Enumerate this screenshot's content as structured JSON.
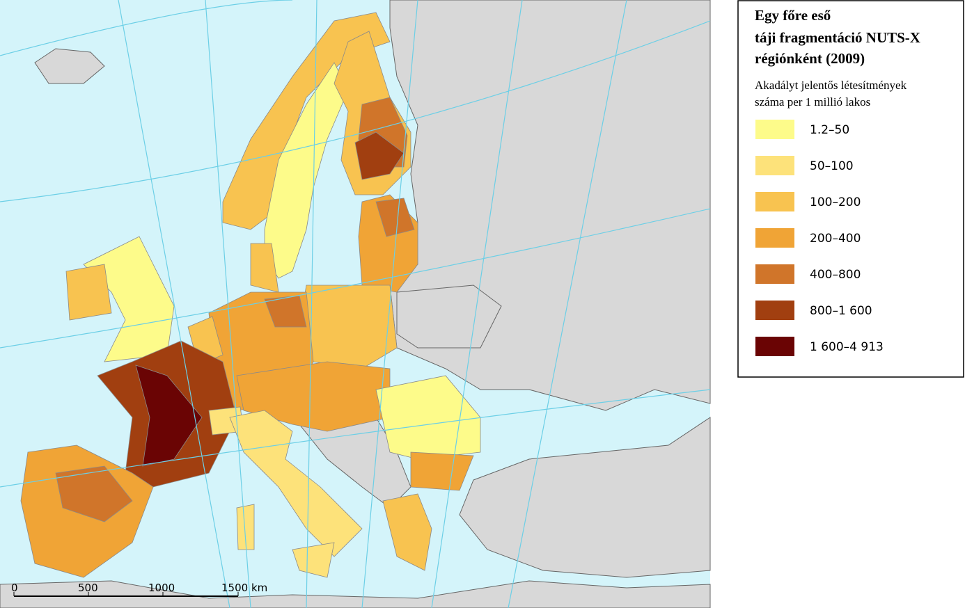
{
  "legend": {
    "title": [
      "Egy főre eső",
      "táji fragmentáció NUTS-X",
      "régiónként (2009)"
    ],
    "subtitle": [
      "Akadályt jelentős létesítmények",
      "száma per 1 millió lakos"
    ],
    "items": [
      {
        "label": "1.2–50",
        "color": "#fdfb8a"
      },
      {
        "label": "50–100",
        "color": "#fde27a"
      },
      {
        "label": "100–200",
        "color": "#f8c350"
      },
      {
        "label": "200–400",
        "color": "#f0a436"
      },
      {
        "label": "400–800",
        "color": "#d0752a"
      },
      {
        "label": "800–1 600",
        "color": "#a13f10"
      },
      {
        "label": "1 600–4 913",
        "color": "#6a0404"
      }
    ]
  },
  "scale_bar": {
    "labels": [
      "0",
      "500",
      "1000",
      "1500 km"
    ]
  }
}
